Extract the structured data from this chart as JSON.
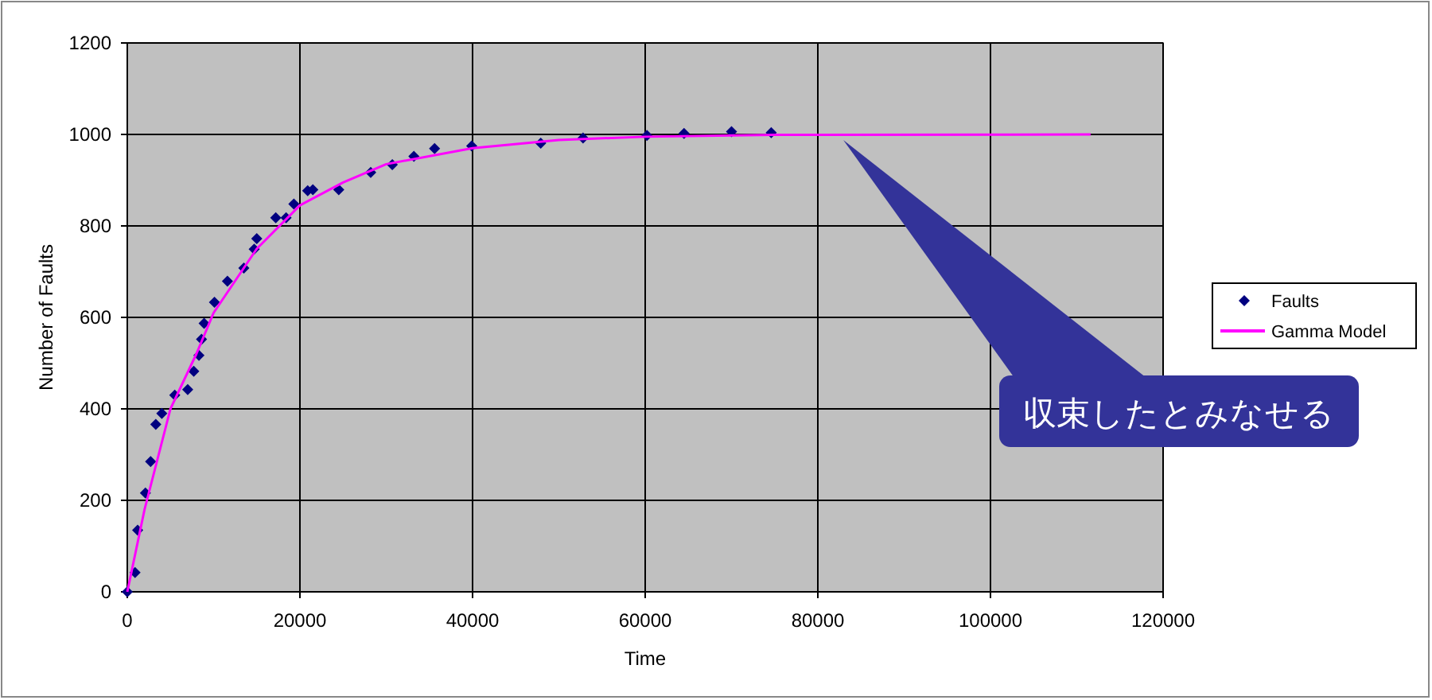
{
  "chart_data": {
    "type": "scatter",
    "xlabel": "Time",
    "ylabel": "Number of Faults",
    "xlim": [
      0,
      120000
    ],
    "ylim": [
      0,
      1200
    ],
    "xticks": [
      0,
      20000,
      40000,
      60000,
      80000,
      100000,
      120000
    ],
    "yticks": [
      0,
      200,
      400,
      600,
      800,
      1000,
      1200
    ],
    "grid": true,
    "legend": "right",
    "series": [
      {
        "name": "Faults",
        "marker": "diamond",
        "color": "#000080",
        "x": [
          0,
          900,
          1200,
          2100,
          2700,
          3300,
          4000,
          5500,
          7000,
          7700,
          8300,
          8600,
          8900,
          10100,
          11600,
          13500,
          14700,
          15000,
          17200,
          18400,
          19300,
          20900,
          21500,
          24500,
          28200,
          30700,
          33200,
          35600,
          39900,
          47900,
          52800,
          60200,
          64500,
          70000,
          74600
        ],
        "values": [
          0,
          42,
          135,
          216,
          285,
          366,
          390,
          430,
          442,
          482,
          517,
          552,
          587,
          633,
          679,
          708,
          749,
          772,
          818,
          818,
          848,
          877,
          879,
          879,
          917,
          934,
          952,
          969,
          975,
          981,
          992,
          998,
          1002,
          1006,
          1004
        ]
      },
      {
        "name": "Gamma Model",
        "type": "line",
        "color": "#ff00ff",
        "x": [
          0,
          2000,
          5000,
          8000,
          10000,
          15000,
          20000,
          25000,
          30000,
          40000,
          50000,
          60000,
          75000,
          111600
        ],
        "values": [
          0,
          180,
          400,
          520,
          610,
          750,
          845,
          895,
          935,
          970,
          988,
          995,
          999,
          1000
        ]
      }
    ],
    "annotations": [
      "収束したとみなせる"
    ]
  }
}
